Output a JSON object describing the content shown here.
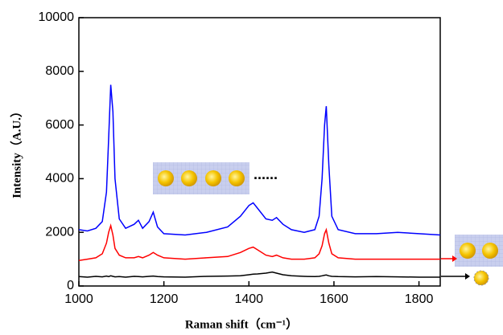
{
  "chart_data": {
    "type": "line",
    "xlabel": "Raman shift（cm⁻¹）",
    "ylabel": "Intensity（A.U.）",
    "annotation": "......",
    "x": [
      1000,
      1020,
      1040,
      1055,
      1065,
      1070,
      1075,
      1080,
      1085,
      1095,
      1110,
      1130,
      1140,
      1150,
      1165,
      1175,
      1185,
      1200,
      1250,
      1300,
      1350,
      1380,
      1400,
      1410,
      1420,
      1440,
      1455,
      1465,
      1480,
      1500,
      1530,
      1555,
      1565,
      1572,
      1578,
      1582,
      1588,
      1595,
      1610,
      1650,
      1700,
      1750,
      1800,
      1850
    ],
    "series": [
      {
        "color": "#0000ff",
        "values": [
          2100,
          2050,
          2150,
          2400,
          3500,
          5500,
          7500,
          6500,
          4000,
          2500,
          2150,
          2300,
          2450,
          2150,
          2400,
          2750,
          2200,
          1950,
          1900,
          2000,
          2200,
          2600,
          3000,
          3100,
          2900,
          2500,
          2450,
          2550,
          2300,
          2100,
          2000,
          2100,
          2600,
          4000,
          6000,
          6700,
          4500,
          2600,
          2100,
          1950,
          1950,
          2000,
          1950,
          1900
        ]
      },
      {
        "color": "#ff0000",
        "values": [
          950,
          1000,
          1050,
          1200,
          1600,
          2000,
          2250,
          1900,
          1400,
          1150,
          1050,
          1050,
          1100,
          1050,
          1150,
          1250,
          1150,
          1050,
          1000,
          1050,
          1100,
          1250,
          1400,
          1450,
          1350,
          1150,
          1100,
          1150,
          1050,
          1000,
          1000,
          1050,
          1200,
          1500,
          1950,
          2100,
          1600,
          1200,
          1050,
          1000,
          1000,
          1000,
          1000,
          1000
        ]
      },
      {
        "color": "#000000",
        "values": [
          350,
          330,
          360,
          340,
          370,
          350,
          380,
          360,
          340,
          350,
          330,
          360,
          350,
          340,
          360,
          370,
          350,
          340,
          330,
          360,
          370,
          380,
          420,
          440,
          450,
          480,
          520,
          480,
          420,
          380,
          360,
          350,
          360,
          380,
          400,
          410,
          380,
          360,
          350,
          340,
          350,
          340,
          330,
          330
        ]
      }
    ],
    "xlim": [
      1000,
      1850
    ],
    "xticks": [
      1000,
      1200,
      1400,
      1600,
      1800
    ],
    "ylim": [
      0,
      10000
    ],
    "yticks": [
      0,
      2000,
      4000,
      6000,
      8000,
      10000
    ]
  }
}
